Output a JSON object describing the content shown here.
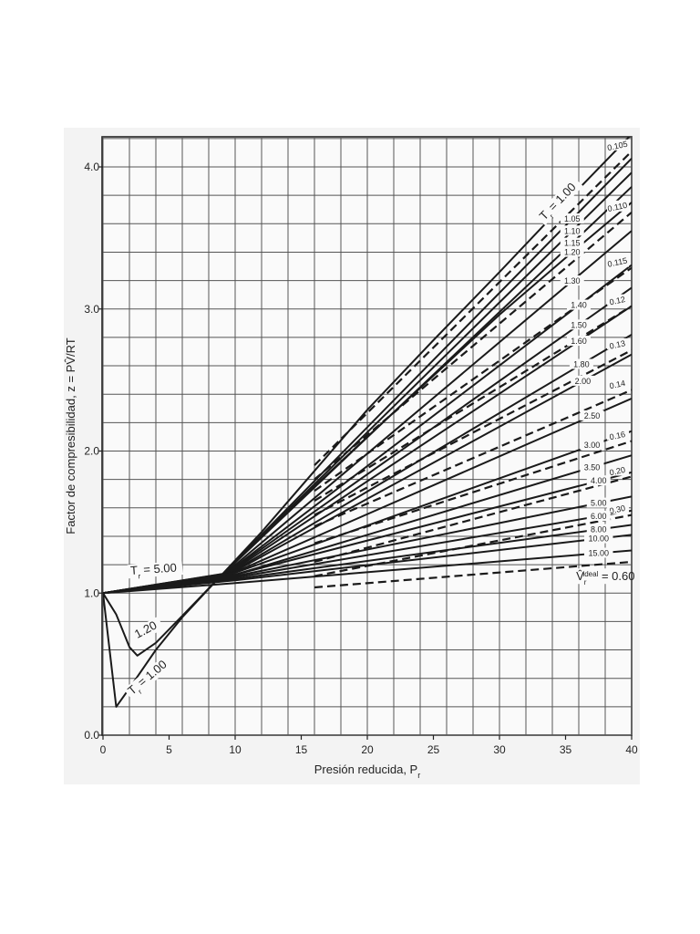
{
  "chart_data": {
    "type": "line",
    "xlabel": "Presión reducida, P",
    "xlabel_sub": "r",
    "ylabel": "Factor de compresibilidad, z = PV̂/RT",
    "xlim": [
      0,
      40
    ],
    "ylim": [
      0,
      4.2
    ],
    "x_ticks": [
      0,
      5,
      10,
      15,
      20,
      25,
      30,
      35,
      40
    ],
    "y_ticks": [
      {
        "value": 0,
        "label": "0.0"
      },
      {
        "value": 1,
        "label": "1.0"
      },
      {
        "value": 2,
        "label": "2.0"
      },
      {
        "value": 3,
        "label": "3.0"
      },
      {
        "value": 4,
        "label": "4.0"
      }
    ],
    "grid": true,
    "grid_x_step": 2,
    "grid_y_step": 0.2,
    "solid_series": [
      {
        "name": "1.00",
        "x": [
          0,
          1,
          2,
          4,
          6,
          8,
          10,
          12,
          16,
          20,
          25,
          30,
          35,
          40
        ],
        "y": [
          1,
          0.2,
          0.33,
          0.6,
          0.83,
          1.03,
          1.23,
          1.43,
          1.86,
          2.29,
          2.78,
          3.26,
          3.75,
          4.23
        ]
      },
      {
        "name": "1.05",
        "x": [
          0,
          8.5,
          40
        ],
        "y": [
          1,
          1.08,
          4.06
        ]
      },
      {
        "name": "1.10",
        "x": [
          0,
          8.6,
          40
        ],
        "y": [
          1,
          1.09,
          3.96
        ]
      },
      {
        "name": "1.15",
        "x": [
          0,
          8.7,
          40
        ],
        "y": [
          1,
          1.1,
          3.86
        ]
      },
      {
        "name": "1.20",
        "x": [
          0,
          1,
          2,
          2.6,
          4,
          6,
          8.8,
          12,
          16,
          20,
          25,
          30,
          35,
          40
        ],
        "y": [
          1,
          0.85,
          0.62,
          0.56,
          0.65,
          0.84,
          1.11,
          1.4,
          1.75,
          2.1,
          2.53,
          2.96,
          3.36,
          3.75
        ]
      },
      {
        "name": "1.30",
        "x": [
          0,
          9,
          40
        ],
        "y": [
          1,
          1.12,
          3.55
        ]
      },
      {
        "name": "1.40",
        "x": [
          0,
          9.2,
          40
        ],
        "y": [
          1,
          1.13,
          3.31
        ]
      },
      {
        "name": "1.50",
        "x": [
          0,
          9.4,
          40
        ],
        "y": [
          1,
          1.14,
          3.15
        ]
      },
      {
        "name": "1.60",
        "x": [
          0,
          9.5,
          40
        ],
        "y": [
          1,
          1.14,
          3.02
        ]
      },
      {
        "name": "1.80",
        "x": [
          0,
          9.6,
          40
        ],
        "y": [
          1,
          1.14,
          2.82
        ]
      },
      {
        "name": "2.00",
        "x": [
          0,
          9.7,
          40
        ],
        "y": [
          1,
          1.14,
          2.68
        ]
      },
      {
        "name": "2.50",
        "x": [
          0,
          9.8,
          40
        ],
        "y": [
          1,
          1.14,
          2.37
        ]
      },
      {
        "name": "3.00",
        "x": [
          0,
          9.9,
          40
        ],
        "y": [
          1,
          1.14,
          2.14
        ]
      },
      {
        "name": "3.50",
        "x": [
          0,
          10,
          40
        ],
        "y": [
          1,
          1.13,
          1.97
        ]
      },
      {
        "name": "4.00",
        "x": [
          0,
          10,
          40
        ],
        "y": [
          1,
          1.13,
          1.85
        ]
      },
      {
        "name": "5.00",
        "x": [
          0,
          10,
          40
        ],
        "y": [
          1,
          1.12,
          1.68
        ]
      },
      {
        "name": "6.00",
        "x": [
          0,
          10,
          40
        ],
        "y": [
          1,
          1.11,
          1.58
        ]
      },
      {
        "name": "8.00",
        "x": [
          0,
          10,
          40
        ],
        "y": [
          1,
          1.1,
          1.48
        ]
      },
      {
        "name": "10.00",
        "x": [
          0,
          10,
          40
        ],
        "y": [
          1,
          1.09,
          1.41
        ]
      },
      {
        "name": "15.00",
        "x": [
          0,
          10,
          40
        ],
        "y": [
          1,
          1.07,
          1.3
        ]
      }
    ],
    "dashed_series": [
      {
        "name": "0.105",
        "x": [
          16,
          40
        ],
        "y": [
          1.9,
          4.11
        ]
      },
      {
        "name": "0.110",
        "x": [
          16,
          40
        ],
        "y": [
          1.8,
          3.68
        ]
      },
      {
        "name": "0.115",
        "x": [
          16,
          40
        ],
        "y": [
          1.72,
          3.29
        ]
      },
      {
        "name": "0.12",
        "x": [
          16,
          40
        ],
        "y": [
          1.65,
          3.02
        ]
      },
      {
        "name": "0.13",
        "x": [
          16,
          40
        ],
        "y": [
          1.55,
          2.71
        ]
      },
      {
        "name": "0.14",
        "x": [
          16,
          40
        ],
        "y": [
          1.47,
          2.43
        ]
      },
      {
        "name": "0.16",
        "x": [
          16,
          40
        ],
        "y": [
          1.35,
          2.07
        ]
      },
      {
        "name": "0.20",
        "x": [
          16,
          40
        ],
        "y": [
          1.22,
          1.82
        ]
      },
      {
        "name": "0.30",
        "x": [
          16,
          40
        ],
        "y": [
          1.12,
          1.55
        ]
      },
      {
        "name": "0.60",
        "x": [
          16,
          40
        ],
        "y": [
          1.04,
          1.22
        ]
      }
    ],
    "annotations": [
      {
        "text": "T",
        "sub": "r",
        "rest": " = 1.00",
        "x": 33.4,
        "y": 3.62,
        "angle": -46
      },
      {
        "text": "T",
        "sub": "r",
        "rest": " = 5.00",
        "x": 2.1,
        "y": 1.13,
        "angle": -4
      },
      {
        "text": "1.20",
        "x": 2.6,
        "y": 0.68,
        "angle": -28
      },
      {
        "text": "T",
        "sub": "r",
        "rest": " = 1.00",
        "x": 2.2,
        "y": 0.28,
        "angle": -40
      }
    ],
    "ideal_label": {
      "text": "V̂",
      "sub": "r",
      "sup": "ideal",
      "rest": " = 0.60"
    }
  }
}
